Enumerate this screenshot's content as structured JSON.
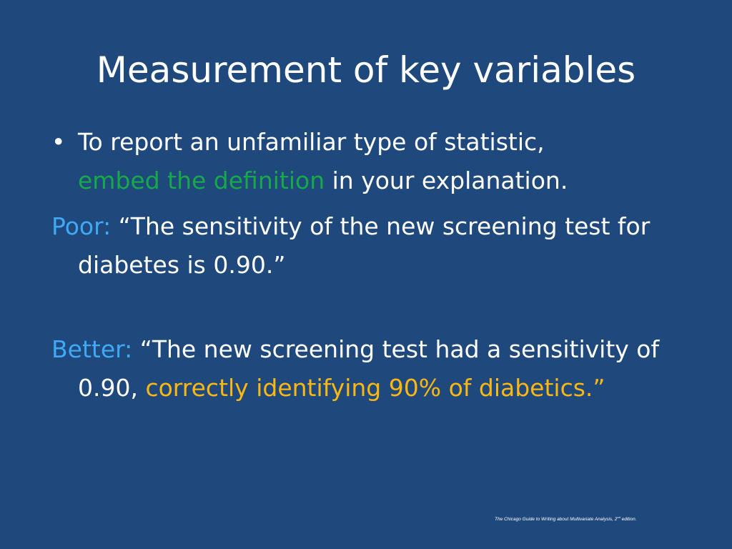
{
  "slide": {
    "title": "Measurement of key variables",
    "bullet_glyph": "•",
    "point1": {
      "text_a": "To report an unfamiliar type of statistic,",
      "highlight": "embed the definition",
      "text_b": " in your explanation."
    },
    "poor": {
      "label": "Poor:",
      "quote": " “The sensitivity of the new screening test for diabetes is 0.90.”"
    },
    "better": {
      "label": "Better:",
      "quote_a": " “The new screening test had a sensitivity of 0.90, ",
      "highlight": "correctly identifying 90% of diabetics.”"
    },
    "footer": {
      "text_a": "The Chicago Guide to Writing about Multivariate Analysis, 2",
      "superscript": "nd",
      "text_b": "  edition."
    }
  },
  "colors": {
    "background": "#1f497d",
    "green": "#17a84a",
    "blue": "#3fa9f5",
    "gold": "#fbb712"
  }
}
